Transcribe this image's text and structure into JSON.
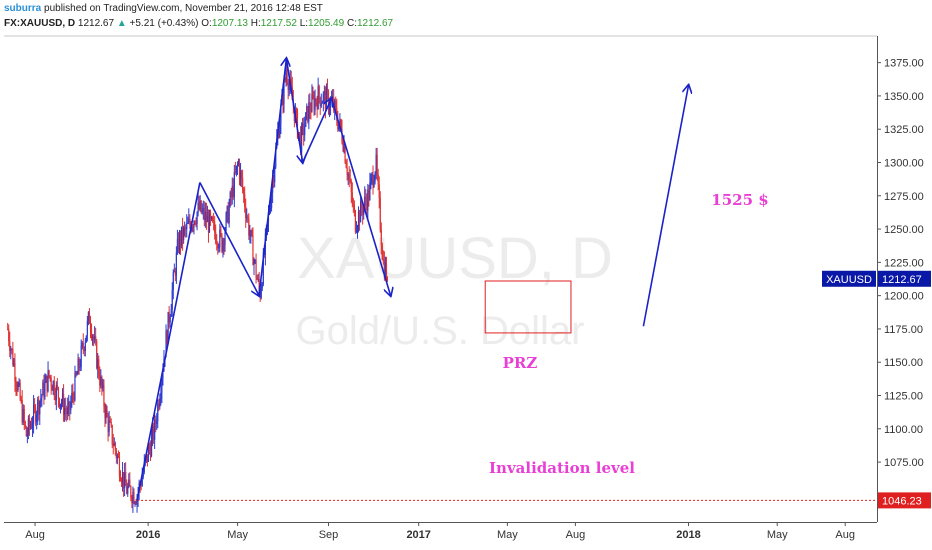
{
  "header": {
    "author": "suburra",
    "published_text": "published on TradingView.com, November 21, 2016 12:48 EST",
    "symbol_line": "FX:XAUUSD, D",
    "last_price": "1212.67",
    "change_arrow": "▲",
    "change_text": "+5.21 (+0.43%)",
    "o_label": "O:",
    "o_value": "1207.13",
    "h_label": "H:",
    "h_value": "1217.52",
    "l_label": "L:",
    "l_value": "1205.49",
    "c_label": "C:",
    "c_value": "1212.67"
  },
  "watermark": {
    "symbol": "XAUUSD, D",
    "description": "Gold/U.S. Dollar"
  },
  "price_tags": {
    "symbol_label": "XAUUSD",
    "current_price": "1212.67",
    "invalidation_price": "1046.23"
  },
  "annotations": {
    "target": "1525 $",
    "prz": "PRZ",
    "invalidation": "Invalidation level"
  },
  "colors": {
    "up_candle": "#2b3bd0",
    "down_candle": "#e03030",
    "pattern_line": "#1a22c8",
    "annotation_text": "#e93fd6",
    "price_tag": "#0a18a8",
    "invalidation": "#e02020"
  },
  "chart_data": {
    "type": "candlestick",
    "title": "",
    "xlabel": "",
    "ylabel": "",
    "ylim": [
      1030,
      1395
    ],
    "y_ticks": [
      "1375.00",
      "1350.00",
      "1325.00",
      "1300.00",
      "1275.00",
      "1250.00",
      "1225.00",
      "1200.00",
      "1175.00",
      "1150.00",
      "1125.00",
      "1100.00",
      "1075.00"
    ],
    "x_ticks": [
      {
        "label": "Aug",
        "date": "2015-08-01",
        "bold": false
      },
      {
        "label": "2016",
        "date": "2016-01-01",
        "bold": true
      },
      {
        "label": "May",
        "date": "2016-05-01",
        "bold": false
      },
      {
        "label": "Sep",
        "date": "2016-09-01",
        "bold": false
      },
      {
        "label": "2017",
        "date": "2017-01-01",
        "bold": true
      },
      {
        "label": "May",
        "date": "2017-05-01",
        "bold": false
      },
      {
        "label": "Aug",
        "date": "2017-08-01",
        "bold": false
      },
      {
        "label": "2018",
        "date": "2018-01-01",
        "bold": true
      },
      {
        "label": "May",
        "date": "2018-05-01",
        "bold": false
      },
      {
        "label": "Aug",
        "date": "2018-08-01",
        "bold": false
      }
    ],
    "price_path": [
      {
        "date": "2015-06-25",
        "price": 1175
      },
      {
        "date": "2015-07-20",
        "price": 1095
      },
      {
        "date": "2015-08-20",
        "price": 1140
      },
      {
        "date": "2015-09-15",
        "price": 1110
      },
      {
        "date": "2015-10-14",
        "price": 1185
      },
      {
        "date": "2015-11-05",
        "price": 1110
      },
      {
        "date": "2015-12-02",
        "price": 1055
      },
      {
        "date": "2015-12-17",
        "price": 1050
      },
      {
        "date": "2016-01-10",
        "price": 1100
      },
      {
        "date": "2016-02-11",
        "price": 1240
      },
      {
        "date": "2016-03-10",
        "price": 1265
      },
      {
        "date": "2016-04-10",
        "price": 1240
      },
      {
        "date": "2016-05-02",
        "price": 1300
      },
      {
        "date": "2016-05-31",
        "price": 1200
      },
      {
        "date": "2016-06-24",
        "price": 1320
      },
      {
        "date": "2016-07-06",
        "price": 1370
      },
      {
        "date": "2016-07-25",
        "price": 1315
      },
      {
        "date": "2016-08-05",
        "price": 1340
      },
      {
        "date": "2016-08-18",
        "price": 1350
      },
      {
        "date": "2016-09-06",
        "price": 1345
      },
      {
        "date": "2016-09-20",
        "price": 1320
      },
      {
        "date": "2016-10-07",
        "price": 1255
      },
      {
        "date": "2016-10-25",
        "price": 1275
      },
      {
        "date": "2016-11-04",
        "price": 1300
      },
      {
        "date": "2016-11-14",
        "price": 1225
      },
      {
        "date": "2016-11-21",
        "price": 1212.67
      }
    ],
    "pattern_points": [
      {
        "date": "2015-12-17",
        "price": 1046.23
      },
      {
        "date": "2016-03-11",
        "price": 1285
      },
      {
        "date": "2016-05-30",
        "price": 1200
      },
      {
        "date": "2016-07-06",
        "price": 1378
      },
      {
        "date": "2016-07-28",
        "price": 1300
      },
      {
        "date": "2016-09-05",
        "price": 1348
      },
      {
        "date": "2016-11-24",
        "price": 1200
      }
    ],
    "projection_arrow": {
      "from": {
        "date": "2017-11-01",
        "price": 1177
      },
      "to": {
        "date": "2018-01-01",
        "price": 1358
      }
    },
    "prz_box": {
      "date_from": "2017-04-01",
      "date_to": "2017-07-26",
      "price_low": 1172,
      "price_high": 1211
    },
    "invalidation_level": 1046.23,
    "current_price": 1212.67
  }
}
